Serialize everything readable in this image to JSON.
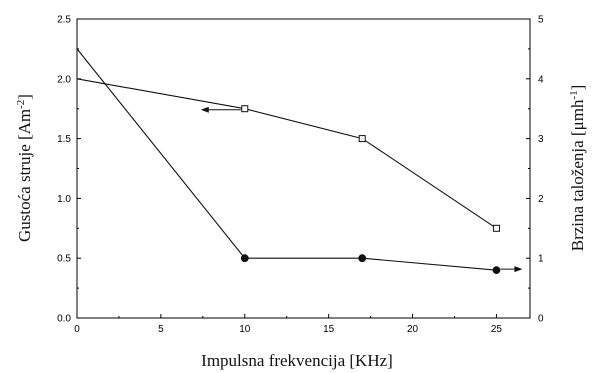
{
  "chart_data": {
    "type": "line",
    "xlabel": "Impulsna frekvencija [KHz]",
    "ylabel_left": "Gustoća struje [Am",
    "ylabel_left_sup": "-2",
    "ylabel_left_end": "]",
    "ylabel_right": "Brzina taloženja [μmh",
    "ylabel_right_sup": "-1",
    "ylabel_right_end": "]",
    "xlim": [
      0,
      27
    ],
    "ylim_left": [
      0,
      2.5
    ],
    "ylim_right": [
      0,
      5
    ],
    "xticks": [
      0,
      5,
      10,
      15,
      20,
      25
    ],
    "xtick_labels": [
      "0",
      "5",
      "10",
      "15",
      "20",
      "25"
    ],
    "yticks_left": [
      0.0,
      0.5,
      1.0,
      1.5,
      2.0,
      2.5
    ],
    "ytick_labels_left": [
      "0.0",
      "0.5",
      "1.0",
      "1.5",
      "2.0",
      "2.5"
    ],
    "yticks_right": [
      0,
      1,
      2,
      3,
      4,
      5
    ],
    "ytick_labels_right": [
      "0",
      "1",
      "2",
      "3",
      "4",
      "5"
    ],
    "grid": false,
    "series": [
      {
        "marker": "open-square",
        "axis": "left",
        "x": [
          0,
          10,
          17,
          25
        ],
        "y": [
          2.0,
          1.75,
          1.5,
          0.75
        ]
      },
      {
        "marker": "filled-circle",
        "axis": "right",
        "x": [
          0,
          10,
          17,
          25
        ],
        "y": [
          4.5,
          1.0,
          1.0,
          0.8
        ]
      }
    ],
    "arrows": [
      {
        "series": 0,
        "direction": "left"
      },
      {
        "series": 1,
        "direction": "right"
      }
    ]
  }
}
